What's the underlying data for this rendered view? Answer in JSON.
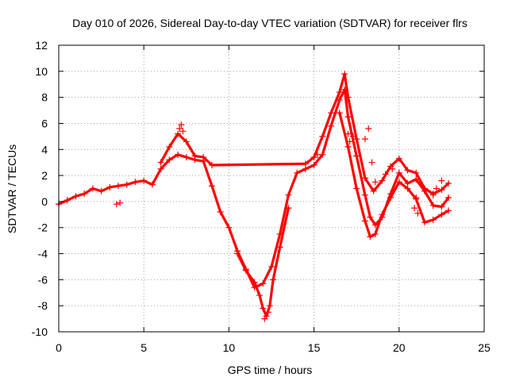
{
  "chart_data": {
    "type": "scatter",
    "title": "Day 010 of 2026, Sidereal Day-to-day VTEC variation (SDTVAR) for receiver flrs",
    "xlabel": "GPS time / hours",
    "ylabel": "SDTVAR / TECUs",
    "xlim": [
      0,
      25
    ],
    "ylim": [
      -10,
      12
    ],
    "xticks": [
      0,
      5,
      10,
      15,
      20,
      25
    ],
    "xtick_labels": [
      "0",
      "5",
      "10",
      "15",
      "20",
      "25"
    ],
    "yticks": [
      -10,
      -8,
      -6,
      -4,
      -2,
      0,
      2,
      4,
      6,
      8,
      10,
      12
    ],
    "ytick_labels": [
      "-10",
      "-8",
      "-6",
      "-4",
      "-2",
      "0",
      "2",
      "4",
      "6",
      "8",
      "10",
      "12"
    ],
    "grid": true,
    "marker": "plus",
    "color": "#ff0000",
    "series": [
      {
        "name": "main",
        "x": [
          0,
          0.5,
          1,
          1.5,
          2,
          2.5,
          3,
          3.5,
          4,
          4.5,
          5,
          5.5,
          6,
          6.5,
          7,
          7.5,
          8,
          8.5,
          9,
          9.5,
          10,
          10.5,
          11,
          11.5,
          12,
          12.5,
          13,
          13.5,
          14,
          14.5,
          15,
          15.5,
          16,
          16.5,
          16.8,
          17,
          17.5,
          18,
          18.3,
          18.6,
          19,
          19.5,
          20,
          20.5,
          21,
          21.5,
          22,
          22.5,
          22.9
        ],
        "y": [
          -0.2,
          0.1,
          0.4,
          0.6,
          1.0,
          0.8,
          1.1,
          1.2,
          1.3,
          1.5,
          1.6,
          1.3,
          2.5,
          3.2,
          3.6,
          3.4,
          3.2,
          3.1,
          1.2,
          -0.8,
          -2.0,
          -3.8,
          -5.2,
          -6.6,
          -6.3,
          -5.0,
          -2.5,
          0.5,
          2.2,
          2.5,
          2.8,
          3.6,
          5.8,
          7.8,
          8.6,
          6.5,
          3.5,
          0.5,
          -1.2,
          -1.8,
          -1.2,
          0.6,
          2.2,
          1.4,
          1.7,
          0.8,
          -0.3,
          -0.4,
          0.3
        ]
      },
      {
        "name": "upper",
        "x": [
          6,
          6.5,
          7,
          7.5,
          8,
          8.5,
          9,
          14.5,
          15,
          15.5,
          16,
          16.5,
          16.8,
          17,
          17.5,
          18,
          18.5,
          19,
          19.5,
          20,
          20.5,
          21,
          21.5,
          22,
          22.5,
          22.9
        ],
        "y": [
          3.0,
          4.2,
          5.2,
          4.6,
          3.5,
          3.4,
          2.8,
          2.9,
          3.4,
          5.0,
          6.8,
          8.4,
          9.8,
          8.0,
          4.8,
          1.8,
          0.8,
          1.6,
          2.7,
          3.3,
          2.4,
          2.2,
          1.0,
          0.6,
          0.9,
          1.4
        ]
      },
      {
        "name": "lower",
        "x": [
          16.5,
          17,
          17.5,
          18,
          18.3,
          18.6,
          19,
          19.5,
          20,
          20.5,
          21,
          21.5,
          22,
          22.5,
          22.9
        ],
        "y": [
          6.8,
          4.2,
          1.0,
          -1.5,
          -2.7,
          -2.5,
          -1.0,
          0.3,
          1.5,
          1.0,
          0.2,
          -1.6,
          -1.4,
          -1.0,
          -0.7
        ]
      },
      {
        "name": "dip",
        "x": [
          10.5,
          11,
          11.5,
          11.8,
          12,
          12.2,
          12.4,
          12.6,
          13,
          13.5
        ],
        "y": [
          -4.0,
          -5.3,
          -6.2,
          -7.2,
          -8.2,
          -8.8,
          -8.0,
          -6.0,
          -3.5,
          -0.5
        ]
      }
    ],
    "scattered_points": {
      "x": [
        3.4,
        3.6,
        7.1,
        7.2,
        7.3,
        12.1,
        12.3,
        15.2,
        17.0,
        17.1,
        17.3,
        18.0,
        18.2,
        18.4,
        18.6,
        19.2,
        19.6,
        20.9,
        21.0,
        21.1,
        22.0,
        22.2,
        22.5
      ],
      "y": [
        -0.2,
        -0.1,
        5.6,
        5.9,
        5.4,
        -9.0,
        -8.5,
        3.6,
        5.2,
        4.6,
        5.0,
        4.8,
        5.6,
        3.0,
        1.5,
        2.1,
        2.5,
        -0.5,
        0.3,
        -0.9,
        0.5,
        1.0,
        1.6
      ]
    }
  }
}
